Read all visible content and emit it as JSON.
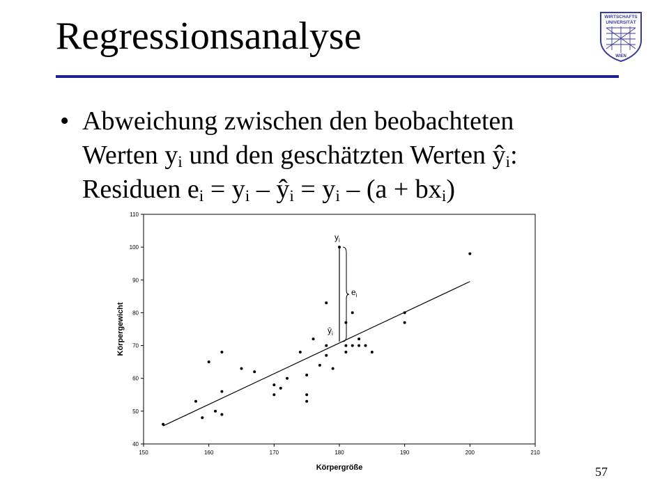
{
  "slide": {
    "title": "Regressionsanalyse",
    "page_number": "57",
    "bullet": {
      "marker": "•",
      "line1": "Abweichung zwischen den beobachteten",
      "line2_a": "Werten y",
      "line2_sub_a": "i",
      "line2_b": " und den geschätzten Werten ŷ",
      "line2_sub_b": "i",
      "line2_c": ":",
      "line3_a": "Residuen e",
      "line3_sub_a": "i",
      "line3_b": " = y",
      "line3_sub_b": "i",
      "line3_c": " – ŷ",
      "line3_sub_c": "i",
      "line3_d": " = y",
      "line3_sub_d": "i",
      "line3_e": " – (a + bx",
      "line3_sub_e": "i",
      "line3_f": ")"
    },
    "logo": {
      "line1": "WIRTSCHAFTS",
      "line2": "UNIVERSITÄT",
      "line3": "WIEN",
      "color": "#3a3a9a"
    },
    "colors": {
      "rule": "#1f1f8f",
      "text": "#000000"
    }
  },
  "chart_data": {
    "type": "scatter",
    "xlabel": "Körpergröße",
    "ylabel": "Körpergewicht",
    "xlim": [
      150,
      210
    ],
    "ylim": [
      40,
      110
    ],
    "xticks": [
      150,
      160,
      170,
      180,
      190,
      200,
      210
    ],
    "yticks": [
      40,
      50,
      60,
      70,
      80,
      90,
      100,
      110
    ],
    "points": [
      [
        153,
        46
      ],
      [
        158,
        53
      ],
      [
        159,
        48
      ],
      [
        160,
        65
      ],
      [
        161,
        50
      ],
      [
        162,
        68
      ],
      [
        162,
        56
      ],
      [
        162,
        49
      ],
      [
        165,
        63
      ],
      [
        167,
        62
      ],
      [
        170,
        58
      ],
      [
        170,
        55
      ],
      [
        171,
        57
      ],
      [
        172,
        60
      ],
      [
        174,
        68
      ],
      [
        175,
        61
      ],
      [
        175,
        55
      ],
      [
        175,
        53
      ],
      [
        176,
        72
      ],
      [
        177,
        64
      ],
      [
        178,
        83
      ],
      [
        178,
        70
      ],
      [
        178,
        67
      ],
      [
        179,
        63
      ],
      [
        180,
        100
      ],
      [
        181,
        77
      ],
      [
        181,
        70
      ],
      [
        181,
        68
      ],
      [
        182,
        80
      ],
      [
        182,
        70
      ],
      [
        183,
        72
      ],
      [
        183,
        70
      ],
      [
        184,
        70
      ],
      [
        185,
        68
      ],
      [
        190,
        80
      ],
      [
        190,
        77
      ],
      [
        200,
        98
      ]
    ],
    "regression_line": {
      "x": [
        153,
        200
      ],
      "y": [
        45.5,
        89.5
      ]
    },
    "residual": {
      "x": 180,
      "y_observed": 100,
      "y_fitted": 71.2
    },
    "annotations": {
      "observed_label": "y",
      "observed_sub": "i",
      "residual_label": "e",
      "residual_sub": "i",
      "fitted_label": "ŷ",
      "fitted_sub": "i"
    }
  }
}
